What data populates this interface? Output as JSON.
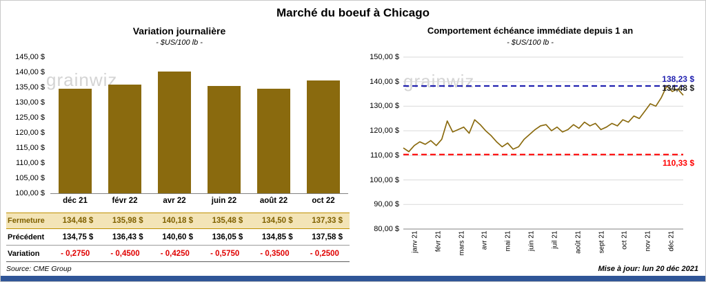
{
  "page": {
    "title": "Marché du boeuf à Chicago",
    "source": "Source: CME Group",
    "updated": "Mise à jour: lun 20 déc 2021"
  },
  "watermark": "grainwiz",
  "colors": {
    "series": "#8a6a0e",
    "max_line": "#2121b0",
    "min_line": "#ff0000",
    "grid": "#d9d9d9",
    "axis": "#808080",
    "fermeture_bg": "#f3e4b6",
    "accent_strip": "#2f5597"
  },
  "chart_data": [
    {
      "type": "bar",
      "title": "Variation journalière",
      "subtitle": "- $US/100 lb -",
      "categories": [
        "déc 21",
        "févr 22",
        "avr 22",
        "juin 22",
        "août 22",
        "oct 22"
      ],
      "values": [
        134.48,
        135.98,
        140.18,
        135.48,
        134.5,
        137.33
      ],
      "ylim": [
        100,
        145
      ],
      "ytick_step": 5,
      "ytick_labels": [
        "145,00 $",
        "140,00 $",
        "135,00 $",
        "130,00 $",
        "125,00 $",
        "120,00 $",
        "115,00 $",
        "110,00 $",
        "105,00 $",
        "100,00 $"
      ],
      "table": {
        "rows": [
          {
            "key": "fermeture",
            "label": "Fermeture",
            "values": [
              "134,48 $",
              "135,98 $",
              "140,18 $",
              "135,48 $",
              "134,50 $",
              "137,33 $"
            ]
          },
          {
            "key": "precedent",
            "label": "Précédent",
            "values": [
              "134,75 $",
              "136,43 $",
              "140,60 $",
              "136,05 $",
              "134,85 $",
              "137,58 $"
            ]
          },
          {
            "key": "variation",
            "label": "Variation",
            "values": [
              "- 0,2750",
              "- 0,4500",
              "- 0,4250",
              "- 0,5750",
              "- 0,3500",
              "- 0,2500"
            ]
          }
        ]
      }
    },
    {
      "type": "line",
      "title": "Comportement échéance immédiate depuis 1 an",
      "subtitle": "- $US/100 lb -",
      "x_labels": [
        "janv 21",
        "févr 21",
        "mars 21",
        "avr 21",
        "mai 21",
        "juin 21",
        "juil 21",
        "août 21",
        "sept 21",
        "oct 21",
        "nov 21",
        "déc 21"
      ],
      "values": [
        113.0,
        111.5,
        114.0,
        115.5,
        114.5,
        116.0,
        114.0,
        116.5,
        124.0,
        119.5,
        120.5,
        121.5,
        119.0,
        124.5,
        122.5,
        120.0,
        118.0,
        115.5,
        113.5,
        115.0,
        112.5,
        113.5,
        116.5,
        118.5,
        120.5,
        122.0,
        122.5,
        120.0,
        121.5,
        119.5,
        120.5,
        122.5,
        121.0,
        123.5,
        122.0,
        123.0,
        120.5,
        121.5,
        123.0,
        122.0,
        124.5,
        123.5,
        126.0,
        125.0,
        128.0,
        131.0,
        130.0,
        133.5,
        138.23,
        136.0,
        137.0,
        134.48
      ],
      "ylim": [
        80,
        150
      ],
      "ytick_step": 10,
      "ytick_labels": [
        "150,00 $",
        "140,00 $",
        "130,00 $",
        "120,00 $",
        "110,00 $",
        "100,00 $",
        "90,00 $",
        "80,00 $"
      ],
      "annotations": [
        {
          "text": "138,23 $",
          "value": 138.23,
          "color": "blue",
          "line": "dashed",
          "placement": "above"
        },
        {
          "text": "134,48 $",
          "value": 134.48,
          "color": "dark",
          "line": "none",
          "placement": "above"
        },
        {
          "text": "110,33 $",
          "value": 110.33,
          "color": "red",
          "line": "dashed",
          "placement": "below"
        }
      ]
    }
  ]
}
